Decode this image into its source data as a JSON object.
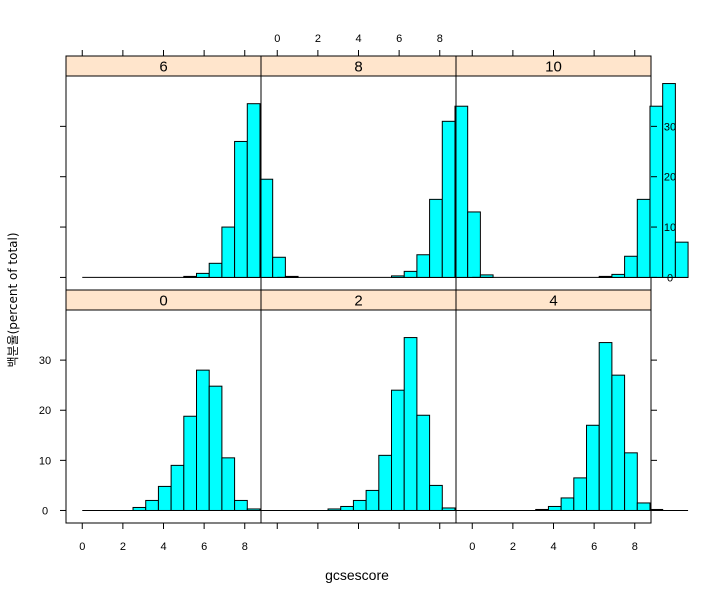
{
  "chart_data": {
    "type": "bar",
    "layout": "lattice histogram, 3 columns x 2 rows",
    "xlabel": "gcsescore",
    "ylabel": "백분율(percent of total)",
    "xlim": [
      -0.8,
      8.8
    ],
    "ylim": [
      -2.5,
      40
    ],
    "x_ticks": [
      "0",
      "2",
      "4",
      "6",
      "8"
    ],
    "y_ticks": [
      "0",
      "10",
      "20",
      "30"
    ],
    "bin_width": 0.625,
    "bin_start": 0,
    "colors": {
      "bar_fill": "#00ffff",
      "strip_fill": "#ffe5cc",
      "stroke": "#000000"
    },
    "panels": [
      {
        "label": "6",
        "values": [
          0,
          0,
          0,
          0,
          0,
          0,
          0,
          0,
          0.2,
          0.8,
          2.8,
          10,
          27,
          34.5,
          19.5,
          4,
          0.2
        ]
      },
      {
        "label": "8",
        "values": [
          0,
          0,
          0,
          0,
          0,
          0,
          0,
          0,
          0,
          0.3,
          1.2,
          4.5,
          15.5,
          31,
          34,
          13,
          0.5
        ]
      },
      {
        "label": "10",
        "values": [
          0,
          0,
          0,
          0,
          0,
          0,
          0,
          0,
          0,
          0,
          0.2,
          0.6,
          4.2,
          15.5,
          34,
          38.5,
          7
        ]
      },
      {
        "label": "0",
        "values": [
          0,
          0,
          0,
          0,
          0.6,
          2,
          4.8,
          9,
          18.8,
          28,
          24.8,
          10.5,
          2,
          0.3,
          0,
          0,
          0
        ]
      },
      {
        "label": "2",
        "values": [
          0,
          0,
          0,
          0,
          0.3,
          0.8,
          2,
          4,
          11,
          24,
          34.5,
          19,
          5,
          0.5,
          0,
          0,
          0
        ]
      },
      {
        "label": "4",
        "values": [
          0,
          0,
          0,
          0,
          0,
          0.2,
          0.8,
          2.5,
          6.5,
          17,
          33.5,
          27,
          11.5,
          1.5,
          0.2,
          0,
          0
        ]
      }
    ]
  }
}
